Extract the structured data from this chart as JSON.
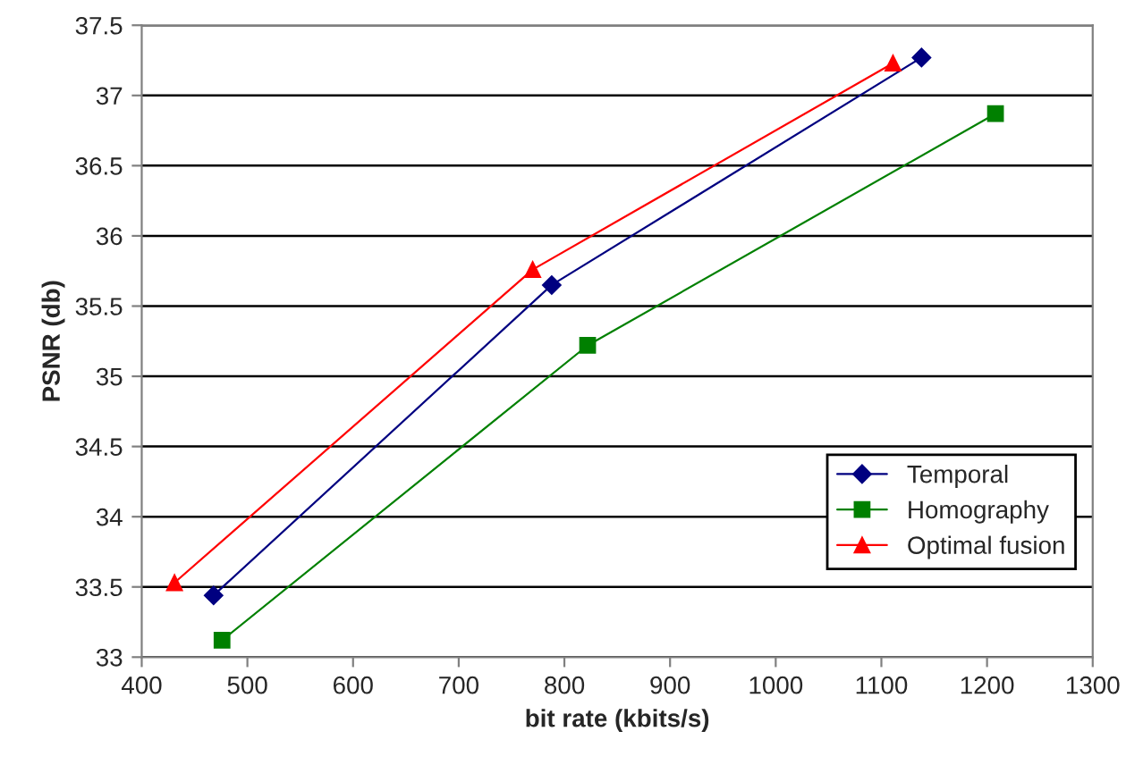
{
  "chart_data": {
    "type": "line",
    "xlabel": "bit rate (kbits/s)",
    "ylabel": "PSNR (db)",
    "xlim": [
      400,
      1300
    ],
    "xticks": [
      400,
      500,
      600,
      700,
      800,
      900,
      1000,
      1100,
      1200,
      1300
    ],
    "ylim": [
      33,
      37.5
    ],
    "yticks": [
      33,
      33.5,
      34,
      34.5,
      35,
      35.5,
      36,
      36.5,
      37,
      37.5
    ],
    "grid": "y",
    "legend": "bottom right",
    "series": [
      {
        "name": "Temporal",
        "color": "#000080",
        "marker": "diamond",
        "x": [
          468,
          788,
          1138
        ],
        "values": [
          33.44,
          35.65,
          37.27
        ]
      },
      {
        "name": "Homography",
        "color": "#008000",
        "marker": "square",
        "x": [
          476,
          822,
          1208
        ],
        "values": [
          33.12,
          35.22,
          36.87
        ]
      },
      {
        "name": "Optimal fusion",
        "color": "#ff0000",
        "marker": "triangle",
        "x": [
          431,
          770,
          1111
        ],
        "values": [
          33.53,
          35.76,
          37.23
        ]
      }
    ]
  }
}
